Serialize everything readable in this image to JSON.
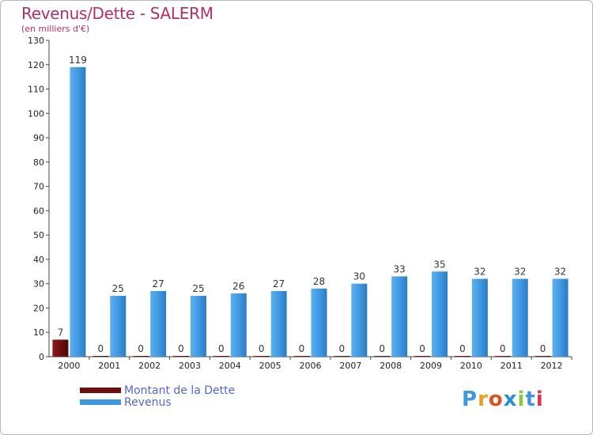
{
  "title": "Revenus/Dette - SALERM",
  "subtitle": "(en milliers d'€)",
  "legend": [
    {
      "label": "Montant de la Dette",
      "color": "#6b0f0f"
    },
    {
      "label": "Revenus",
      "color": "#3f97e0"
    }
  ],
  "logo": {
    "text": "Proxiti",
    "colors": [
      "#3f97e0",
      "#e8a020",
      "#e05020",
      "#2a8fd0",
      "#8cc63f",
      "#3f97e0",
      "#e0304a"
    ]
  },
  "chart_data": {
    "type": "bar",
    "categories": [
      "2000",
      "2001",
      "2002",
      "2003",
      "2004",
      "2005",
      "2006",
      "2007",
      "2008",
      "2009",
      "2010",
      "2011",
      "2012"
    ],
    "series": [
      {
        "name": "Montant de la Dette",
        "color": "#6b0f0f",
        "values": [
          7,
          0,
          0,
          0,
          0,
          0,
          0,
          0,
          0,
          0,
          0,
          0,
          0
        ]
      },
      {
        "name": "Revenus",
        "color": "#3f97e0",
        "values": [
          119,
          25,
          27,
          25,
          26,
          27,
          28,
          30,
          33,
          35,
          32,
          32,
          32
        ]
      }
    ],
    "yticks": [
      0,
      10,
      20,
      30,
      40,
      50,
      60,
      70,
      80,
      90,
      100,
      110,
      120,
      130
    ],
    "ylim": [
      0,
      130
    ],
    "title": "Revenus/Dette - SALERM",
    "ylabel": "(en milliers d'€)",
    "xlabel": "",
    "grid": false,
    "legend_position": "bottom-left"
  }
}
